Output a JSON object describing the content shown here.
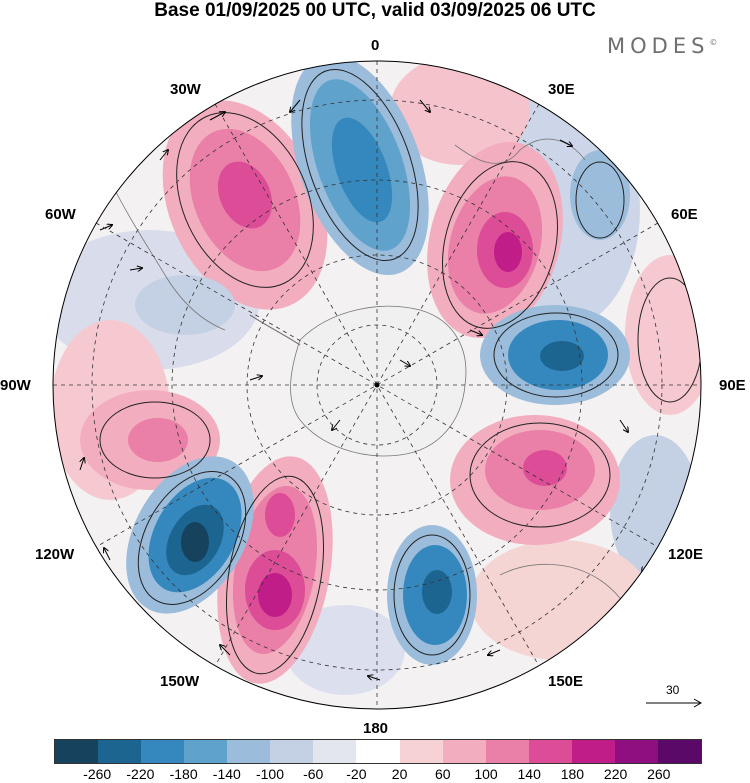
{
  "header": {
    "title": "Base 01/09/2025 00 UTC, valid 03/09/2025 06 UTC",
    "brand": "MODES",
    "brand_mark": "©"
  },
  "map": {
    "projection": "south-polar-stereographic",
    "longitude_labels": {
      "lon_0": "0",
      "lon_30e": "30E",
      "lon_60e": "60E",
      "lon_90e": "90E",
      "lon_120e": "120E",
      "lon_150e": "150E",
      "lon_180": "180",
      "lon_150w": "150W",
      "lon_120w": "120W",
      "lon_90w": "90W",
      "lon_60w": "60W",
      "lon_30w": "30W"
    },
    "wind_reference": {
      "label": "30"
    }
  },
  "colorbar": {
    "ticks": [
      "-260",
      "-220",
      "-180",
      "-140",
      "-100",
      "-60",
      "-20",
      "20",
      "60",
      "100",
      "140",
      "180",
      "220",
      "260"
    ],
    "colors": [
      "#16425e",
      "#1d6591",
      "#3588bd",
      "#5fa2cc",
      "#9bbcda",
      "#c4d0e3",
      "#e3e6ef",
      "#ffffff",
      "#f7d2d5",
      "#f2aebf",
      "#ea7fa7",
      "#dd4c97",
      "#c01d88",
      "#8f0f80",
      "#5b0968"
    ],
    "accent": "#000000"
  }
}
